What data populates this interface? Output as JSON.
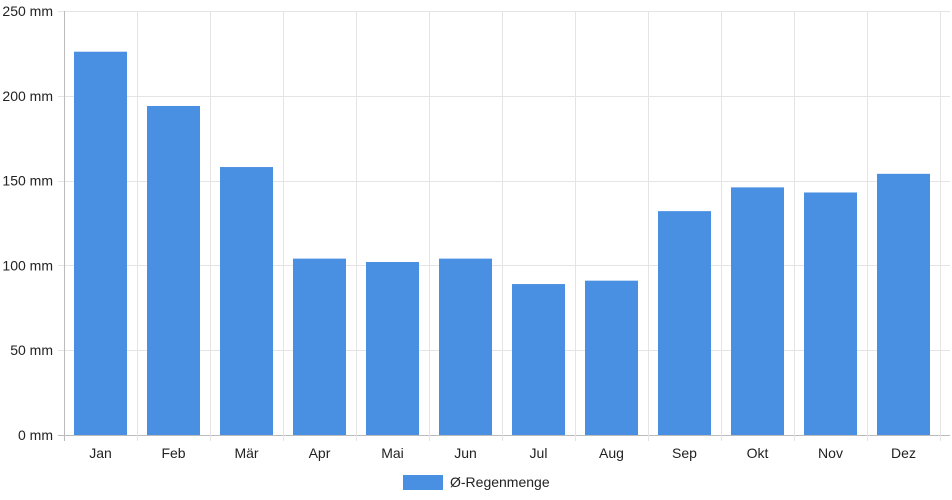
{
  "chart_data": {
    "type": "bar",
    "categories": [
      "Jan",
      "Feb",
      "Mär",
      "Apr",
      "Mai",
      "Jun",
      "Jul",
      "Aug",
      "Sep",
      "Okt",
      "Nov",
      "Dez"
    ],
    "series": [
      {
        "name": "Ø-Regenmenge",
        "color": "#4a90e2",
        "values": [
          226,
          194,
          158,
          104,
          102,
          104,
          89,
          91,
          132,
          146,
          143,
          154
        ]
      }
    ],
    "ylim": [
      0,
      250
    ],
    "yticks": [
      0,
      50,
      100,
      150,
      200,
      250
    ],
    "ytick_labels": [
      "0 mm",
      "50 mm",
      "100 mm",
      "150 mm",
      "200 mm",
      "250 mm"
    ],
    "grid": true,
    "legend_position": "bottom-center",
    "title": "",
    "xlabel": "",
    "ylabel": ""
  }
}
